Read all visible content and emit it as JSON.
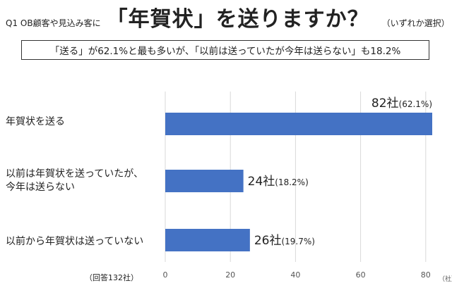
{
  "question": {
    "label": "Q1 OB顧客や見込み客に",
    "main": "「年賀状」を送りますか？",
    "note": "（いずれか選択）"
  },
  "summary": "「送る」が62.1%と最も多いが、「以前は送っていたが今年は送らない」も18.2%",
  "sample_note": "（回答132社）",
  "colors": {
    "bar": "#4472C4",
    "grid": "#D9D9D9"
  },
  "chart_data": {
    "type": "bar",
    "orientation": "horizontal",
    "categories": [
      "年賀状を送る",
      "以前は年賀状を送っていたが、\n今年は送らない",
      "以前から年賀状は送っていない"
    ],
    "values": [
      82,
      24,
      26
    ],
    "data_labels": [
      {
        "main": "82社",
        "pct": "(62.1%)"
      },
      {
        "main": "24社",
        "pct": "(18.2%)"
      },
      {
        "main": "26社",
        "pct": "(19.7%)"
      }
    ],
    "xlim": [
      0,
      82
    ],
    "xticks": [
      0,
      20,
      40,
      60,
      80
    ],
    "x_unit": "（社）",
    "grid": true
  }
}
